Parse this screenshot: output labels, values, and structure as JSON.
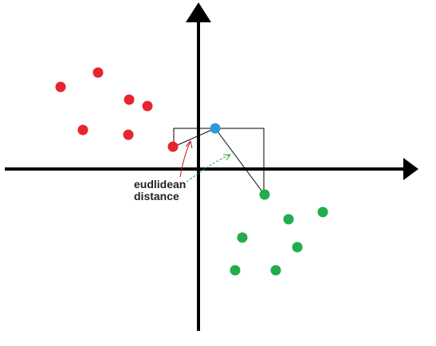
{
  "annotation": {
    "line1": "eudlidean",
    "line2": "distance"
  },
  "colors": {
    "axis": "#000000",
    "class_a": "#e8242c",
    "class_b": "#22ac4c",
    "query": "#2f98d8",
    "annotation_arrow_red": "#c8141e",
    "annotation_arrow_green": "#22ac4c"
  },
  "icons": [
    "arrow-up-icon",
    "arrow-right-icon"
  ]
}
